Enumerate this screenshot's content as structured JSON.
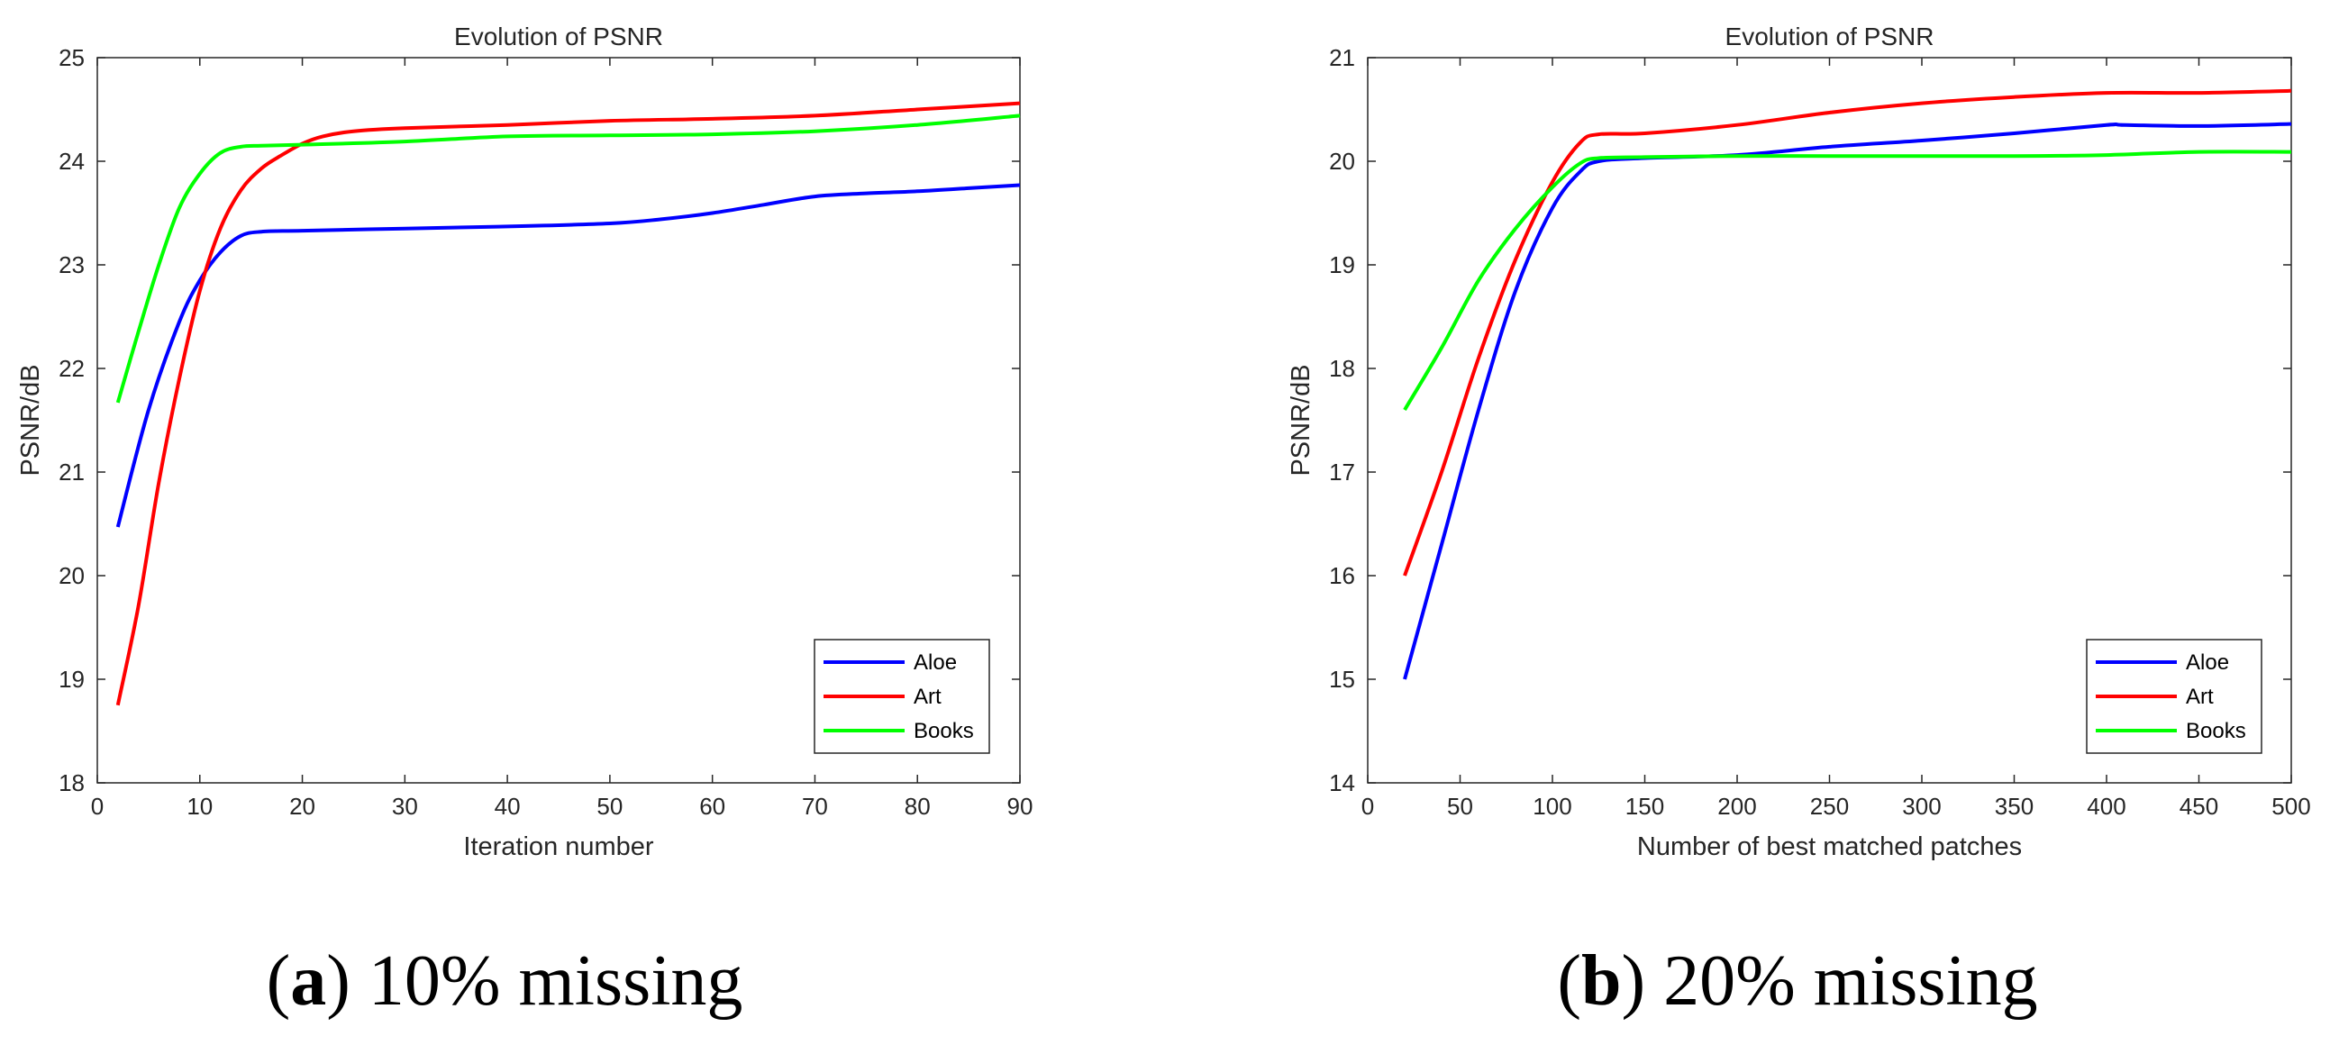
{
  "chart_data": [
    {
      "type": "line",
      "title": "Evolution of PSNR",
      "xlabel": "Iteration number",
      "ylabel": "PSNR/dB",
      "xlim": [
        0,
        90
      ],
      "ylim": [
        18,
        25
      ],
      "xticks": [
        "0",
        "10",
        "20",
        "30",
        "40",
        "50",
        "60",
        "70",
        "80",
        "90"
      ],
      "yticks": [
        "18",
        "19",
        "20",
        "21",
        "22",
        "23",
        "24",
        "25"
      ],
      "legend_position": "bottom-right",
      "series": [
        {
          "name": "Aloe",
          "color": "#0000ff",
          "x": [
            2,
            5,
            8,
            10,
            12,
            14,
            16,
            20,
            30,
            40,
            50,
            55,
            60,
            65,
            70,
            75,
            80,
            85,
            90
          ],
          "y": [
            20.47,
            21.6,
            22.45,
            22.85,
            23.12,
            23.28,
            23.32,
            23.33,
            23.35,
            23.37,
            23.4,
            23.44,
            23.5,
            23.58,
            23.66,
            23.69,
            23.71,
            23.74,
            23.77
          ]
        },
        {
          "name": "Art",
          "color": "#ff0000",
          "x": [
            2,
            4,
            6,
            8,
            10,
            12,
            14,
            16,
            18,
            20,
            22,
            25,
            30,
            40,
            50,
            60,
            70,
            80,
            90
          ],
          "y": [
            18.75,
            19.7,
            20.9,
            21.9,
            22.75,
            23.35,
            23.72,
            23.93,
            24.06,
            24.17,
            24.24,
            24.29,
            24.32,
            24.35,
            24.39,
            24.41,
            24.44,
            24.5,
            24.56
          ]
        },
        {
          "name": "Books",
          "color": "#00ff00",
          "x": [
            2,
            4,
            6,
            8,
            10,
            12,
            14,
            16,
            20,
            30,
            40,
            50,
            60,
            70,
            80,
            90
          ],
          "y": [
            21.67,
            22.35,
            23.0,
            23.55,
            23.88,
            24.08,
            24.14,
            24.15,
            24.16,
            24.19,
            24.24,
            24.25,
            24.26,
            24.29,
            24.35,
            24.44
          ]
        }
      ]
    },
    {
      "type": "line",
      "title": "Evolution of PSNR",
      "xlabel": "Number of best matched patches",
      "ylabel": "PSNR/dB",
      "xlim": [
        0,
        500
      ],
      "ylim": [
        14,
        21
      ],
      "xticks": [
        "0",
        "50",
        "100",
        "150",
        "200",
        "250",
        "300",
        "350",
        "400",
        "450",
        "500"
      ],
      "yticks": [
        "14",
        "15",
        "16",
        "17",
        "18",
        "19",
        "20",
        "21"
      ],
      "legend_position": "bottom-right",
      "series": [
        {
          "name": "Aloe",
          "color": "#0000ff",
          "x": [
            20,
            40,
            60,
            80,
            100,
            115,
            125,
            150,
            200,
            250,
            300,
            350,
            400,
            410,
            450,
            500
          ],
          "y": [
            15.0,
            16.3,
            17.6,
            18.75,
            19.55,
            19.9,
            20.0,
            20.03,
            20.06,
            20.14,
            20.2,
            20.27,
            20.35,
            20.35,
            20.34,
            20.36
          ]
        },
        {
          "name": "Art",
          "color": "#ff0000",
          "x": [
            20,
            40,
            60,
            80,
            100,
            115,
            125,
            150,
            200,
            250,
            300,
            350,
            400,
            450,
            500
          ],
          "y": [
            16.0,
            17.0,
            18.1,
            19.05,
            19.8,
            20.18,
            20.26,
            20.27,
            20.35,
            20.47,
            20.56,
            20.62,
            20.66,
            20.66,
            20.68
          ]
        },
        {
          "name": "Books",
          "color": "#00ff00",
          "x": [
            20,
            40,
            60,
            80,
            100,
            115,
            125,
            150,
            200,
            250,
            300,
            350,
            400,
            450,
            500
          ],
          "y": [
            17.6,
            18.2,
            18.85,
            19.35,
            19.75,
            19.98,
            20.03,
            20.04,
            20.05,
            20.05,
            20.05,
            20.05,
            20.06,
            20.09,
            20.09
          ]
        }
      ]
    }
  ],
  "captions": [
    {
      "label": "a",
      "text": "10% missing"
    },
    {
      "label": "b",
      "text": "20% missing"
    }
  ]
}
